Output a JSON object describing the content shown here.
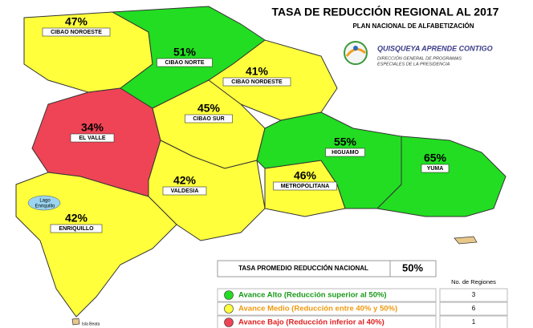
{
  "title": "TASA DE REDUCCIÓN REGIONAL AL 2017",
  "subtitle": "PLAN NACIONAL DE ALFABETIZACIÓN",
  "logo": {
    "name": "QUISQUEYA APRENDE CONTIGO",
    "lines": [
      "DIRECCIÓN GENERAL DE PROGRAMAS",
      "ESPECIALES DE LA PRESIDENCIA"
    ]
  },
  "regions": [
    {
      "name": "CIBAO NOROESTE",
      "value": 47,
      "value_label": "47%",
      "color": "#ffff3c"
    },
    {
      "name": "CIBAO NORTE",
      "value": 51,
      "value_label": "51%",
      "color": "#22dd22"
    },
    {
      "name": "CIBAO NORDESTE",
      "value": 41,
      "value_label": "41%",
      "color": "#ffff3c"
    },
    {
      "name": "EL VALLE",
      "value": 34,
      "value_label": "34%",
      "color": "#ee4455"
    },
    {
      "name": "CIBAO SUR",
      "value": 45,
      "value_label": "45%",
      "color": "#ffff3c"
    },
    {
      "name": "VALDESIA",
      "value": 42,
      "value_label": "42%",
      "color": "#ffff3c"
    },
    {
      "name": "METROPOLITANA",
      "value": 46,
      "value_label": "46%",
      "color": "#ffff3c"
    },
    {
      "name": "HIGUAMO",
      "value": 55,
      "value_label": "55%",
      "color": "#22dd22"
    },
    {
      "name": "YUMA",
      "value": 65,
      "value_label": "65%",
      "color": "#22dd22"
    },
    {
      "name": "ENRIQUILLO",
      "value": 42,
      "value_label": "42%",
      "color": "#ffff3c"
    }
  ],
  "lake": [
    "Lago",
    "Enriquillo"
  ],
  "island": "Isla Beata",
  "average": {
    "label": "TASA PROMEDIO REDUCCIÓN NACIONAL",
    "value": 50,
    "value_label": "50%"
  },
  "legend": {
    "header": "No. de Regiones",
    "items": [
      {
        "label": "Avance Alto (Reducción superior al 50%)",
        "color": "#22dd22",
        "text_color": "#1a9a1a",
        "count": 3
      },
      {
        "label": "Avance Medio (Reducción entre 40% y 50%)",
        "color": "#ffff3c",
        "text_color": "#f09a10",
        "count": 6
      },
      {
        "label": "Avance Bajo (Reducción inferior al 40%)",
        "color": "#ee4455",
        "text_color": "#e02020",
        "count": 1
      }
    ]
  }
}
